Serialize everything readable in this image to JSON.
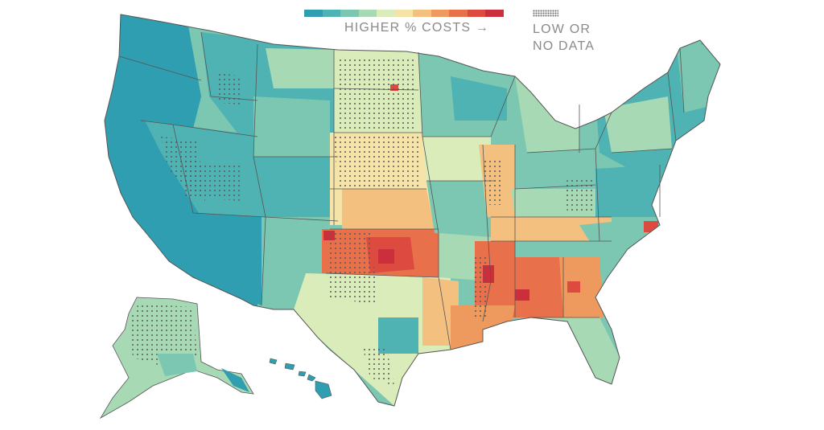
{
  "legend": {
    "scale_colors": [
      "#2f9eb0",
      "#4fb2b3",
      "#7cc7b2",
      "#a8d9b5",
      "#d9ecb9",
      "#f6e3a7",
      "#f4c080",
      "#ee9a5e",
      "#e8704b",
      "#dc4a40",
      "#cc2f3c"
    ],
    "label": "HIGHER % COSTS",
    "arrow": "→",
    "nodata_label_line1": "LOW OR",
    "nodata_label_line2": "NO DATA"
  },
  "map": {
    "regions": [
      "Lower 48 states",
      "Alaska",
      "Hawaii"
    ],
    "outline_color": "#555555",
    "nodata_dot_color": "#5a5a5a"
  }
}
